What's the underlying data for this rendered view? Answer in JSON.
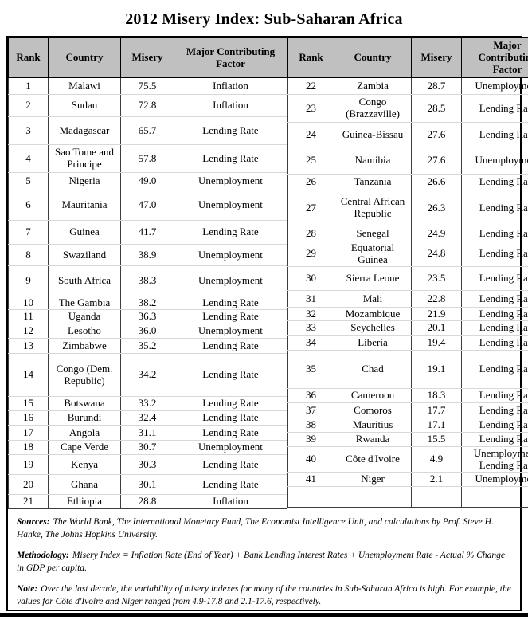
{
  "title": "2012 Misery Index: Sub-Saharan Africa",
  "columns": [
    "Rank",
    "Country",
    "Misery",
    "Major Contributing Factor"
  ],
  "left_table": {
    "rows": [
      {
        "rank": "1",
        "country": "Malawi",
        "misery": "75.5",
        "factor": "Inflation"
      },
      {
        "rank": "2",
        "country": "Sudan",
        "misery": "72.8",
        "factor": "Inflation"
      },
      {
        "rank": "3",
        "country": "Madagascar",
        "misery": "65.7",
        "factor": "Lending Rate"
      },
      {
        "rank": "4",
        "country": "Sao Tome and Principe",
        "misery": "57.8",
        "factor": "Lending Rate"
      },
      {
        "rank": "5",
        "country": "Nigeria",
        "misery": "49.0",
        "factor": "Unemployment"
      },
      {
        "rank": "6",
        "country": "Mauritania",
        "misery": "47.0",
        "factor": "Unemployment"
      },
      {
        "rank": "7",
        "country": "Guinea",
        "misery": "41.7",
        "factor": "Lending Rate"
      },
      {
        "rank": "8",
        "country": "Swaziland",
        "misery": "38.9",
        "factor": "Unemployment"
      },
      {
        "rank": "9",
        "country": "South Africa",
        "misery": "38.3",
        "factor": "Unemployment"
      },
      {
        "rank": "10",
        "country": "The Gambia",
        "misery": "38.2",
        "factor": "Lending Rate"
      },
      {
        "rank": "11",
        "country": "Uganda",
        "misery": "36.3",
        "factor": "Lending Rate"
      },
      {
        "rank": "12",
        "country": "Lesotho",
        "misery": "36.0",
        "factor": "Unemployment"
      },
      {
        "rank": "13",
        "country": "Zimbabwe",
        "misery": "35.2",
        "factor": "Lending Rate"
      },
      {
        "rank": "14",
        "country": "Congo (Dem. Republic)",
        "misery": "34.2",
        "factor": "Lending Rate"
      },
      {
        "rank": "15",
        "country": "Botswana",
        "misery": "33.2",
        "factor": "Lending Rate"
      },
      {
        "rank": "16",
        "country": "Burundi",
        "misery": "32.4",
        "factor": "Lending Rate"
      },
      {
        "rank": "17",
        "country": "Angola",
        "misery": "31.1",
        "factor": "Lending Rate"
      },
      {
        "rank": "18",
        "country": "Cape Verde",
        "misery": "30.7",
        "factor": "Unemployment"
      },
      {
        "rank": "19",
        "country": "Kenya",
        "misery": "30.3",
        "factor": "Lending Rate"
      },
      {
        "rank": "20",
        "country": "Ghana",
        "misery": "30.1",
        "factor": "Lending Rate"
      },
      {
        "rank": "21",
        "country": "Ethiopia",
        "misery": "28.8",
        "factor": "Inflation"
      }
    ]
  },
  "right_table": {
    "empty_row": true,
    "rows": [
      {
        "rank": "22",
        "country": "Zambia",
        "misery": "28.7",
        "factor": "Unemployment"
      },
      {
        "rank": "23",
        "country": "Congo (Brazzaville)",
        "misery": "28.5",
        "factor": "Lending Rate"
      },
      {
        "rank": "24",
        "country": "Guinea-Bissau",
        "misery": "27.6",
        "factor": "Lending Rate"
      },
      {
        "rank": "25",
        "country": "Namibia",
        "misery": "27.6",
        "factor": "Unemployment"
      },
      {
        "rank": "26",
        "country": "Tanzania",
        "misery": "26.6",
        "factor": "Lending Rate"
      },
      {
        "rank": "27",
        "country": "Central African Republic",
        "misery": "26.3",
        "factor": "Lending Rate"
      },
      {
        "rank": "28",
        "country": "Senegal",
        "misery": "24.9",
        "factor": "Lending Rate"
      },
      {
        "rank": "29",
        "country": "Equatorial Guinea",
        "misery": "24.8",
        "factor": "Lending Rate"
      },
      {
        "rank": "30",
        "country": "Sierra Leone",
        "misery": "23.5",
        "factor": "Lending Rate"
      },
      {
        "rank": "31",
        "country": "Mali",
        "misery": "22.8",
        "factor": "Lending Rate"
      },
      {
        "rank": "32",
        "country": "Mozambique",
        "misery": "21.9",
        "factor": "Lending Rate"
      },
      {
        "rank": "33",
        "country": "Seychelles",
        "misery": "20.1",
        "factor": "Lending Rate"
      },
      {
        "rank": "34",
        "country": "Liberia",
        "misery": "19.4",
        "factor": "Lending Rate"
      },
      {
        "rank": "35",
        "country": "Chad",
        "misery": "19.1",
        "factor": "Lending Rate"
      },
      {
        "rank": "36",
        "country": "Cameroon",
        "misery": "18.3",
        "factor": "Lending Rate"
      },
      {
        "rank": "37",
        "country": "Comoros",
        "misery": "17.7",
        "factor": "Lending Rate"
      },
      {
        "rank": "38",
        "country": "Mauritius",
        "misery": "17.1",
        "factor": "Lending Rate"
      },
      {
        "rank": "39",
        "country": "Rwanda",
        "misery": "15.5",
        "factor": "Lending Rate"
      },
      {
        "rank": "40",
        "country": "Côte d'Ivoire",
        "misery": "4.9",
        "factor": "Unemployment/ Lending Rate"
      },
      {
        "rank": "41",
        "country": "Niger",
        "misery": "2.1",
        "factor": "Unemployment"
      }
    ]
  },
  "notes": {
    "sources_label": "Sources:",
    "sources": "The World Bank, The International Monetary Fund, The Economist Intelligence Unit, and calculations by Prof. Steve H. Hanke, The Johns Hopkins University.",
    "methodology_label": "Methodology:",
    "methodology": "Misery Index = Inflation Rate (End of Year) + Bank Lending Interest Rates + Unemployment Rate - Actual % Change in GDP per capita.",
    "note_label": "Note:",
    "note": "Over the last decade, the variability of misery indexes for many of the countries in Sub-Saharan Africa is high. For example, the values for Côte d'Ivoire and Niger ranged from 4.9-17.8 and 2.1-17.6, respectively."
  },
  "colors": {
    "header_bg": "#c0c0c0",
    "border_dark": "#000000",
    "row_separator": "#d8d8d8",
    "bottom_bar": "#000000"
  }
}
